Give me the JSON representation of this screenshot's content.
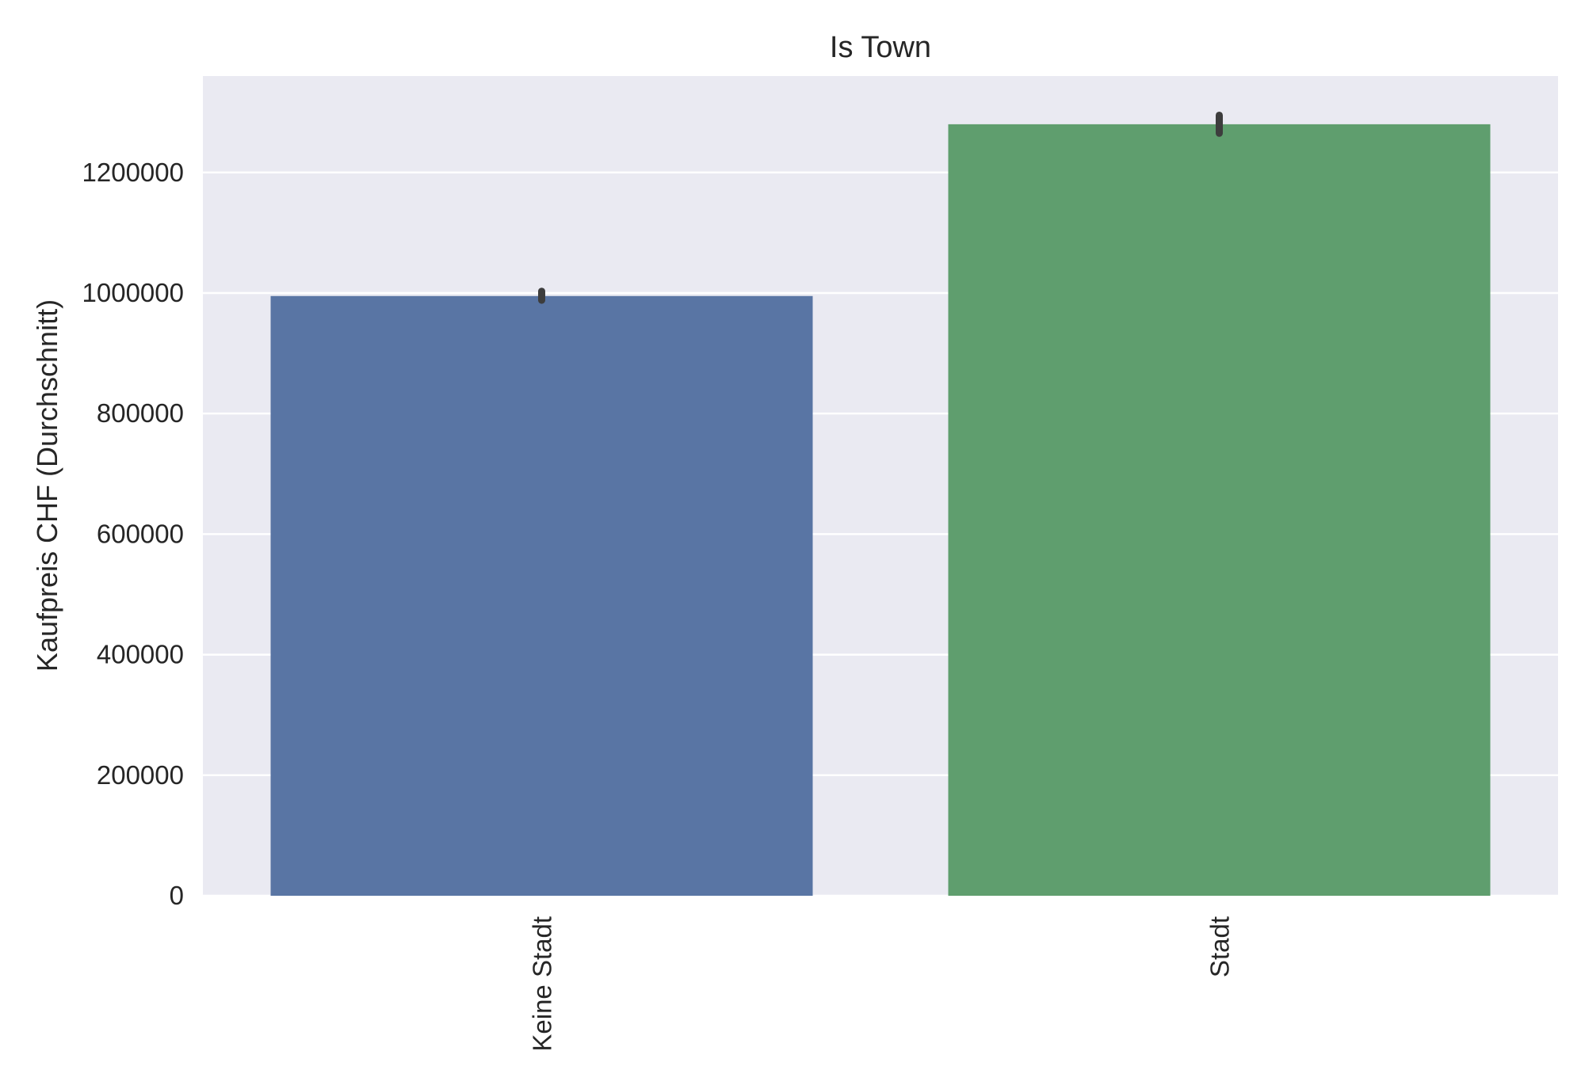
{
  "chart_data": {
    "type": "bar",
    "title": "Is Town",
    "xlabel": "",
    "ylabel": "Kaufpreis CHF (Durchschnitt)",
    "categories": [
      "Keine Stadt",
      "Stadt"
    ],
    "values": [
      995000,
      1280000
    ],
    "error_bars": [
      [
        988000,
        1003000
      ],
      [
        1265000,
        1295000
      ]
    ],
    "colors": [
      "#5975a4",
      "#5f9e6e"
    ],
    "error_color": "#3d3d3d",
    "ylim": [
      0,
      1360000
    ],
    "yticks": [
      0,
      200000,
      400000,
      600000,
      800000,
      1000000,
      1200000
    ],
    "ytick_labels": [
      "0",
      "200000",
      "400000",
      "600000",
      "800000",
      "1000000",
      "1200000"
    ],
    "grid": true,
    "background": "#eaeaf2",
    "grid_color": "#ffffff"
  }
}
